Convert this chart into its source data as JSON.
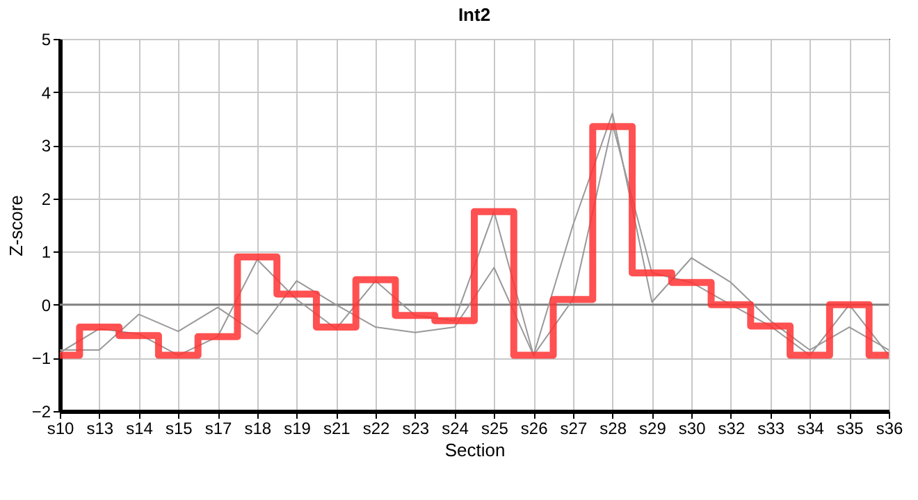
{
  "chart_data": {
    "type": "step",
    "title": "Int2",
    "xlabel": "Section",
    "ylabel": "Z-score",
    "categories": [
      "s10",
      "s13",
      "s14",
      "s15",
      "s17",
      "s18",
      "s19",
      "s21",
      "s22",
      "s23",
      "s24",
      "s25",
      "s26",
      "s27",
      "s28",
      "s29",
      "s30",
      "s32",
      "s33",
      "s34",
      "s35",
      "s36"
    ],
    "series": [
      {
        "type": "line",
        "color": "#999999",
        "values": [
          -0.9,
          -0.45,
          -0.55,
          -0.95,
          -0.6,
          0.85,
          0.1,
          -0.45,
          0.45,
          -0.2,
          -0.3,
          1.75,
          -0.95,
          0.1,
          3.4,
          0.6,
          0.42,
          0.0,
          -0.4,
          -0.95,
          0.0,
          -0.95
        ]
      },
      {
        "type": "line",
        "color": "#999999",
        "values": [
          -0.85,
          -0.85,
          -0.18,
          -0.5,
          -0.05,
          -0.55,
          0.45,
          0.0,
          -0.42,
          -0.52,
          -0.42,
          0.7,
          -0.95,
          1.5,
          3.6,
          0.05,
          0.88,
          0.42,
          -0.3,
          -0.85,
          -0.42,
          -0.85
        ]
      },
      {
        "type": "step",
        "color": "#ff3333",
        "values": [
          -0.95,
          -0.42,
          -0.58,
          -0.95,
          -0.6,
          0.9,
          0.2,
          -0.42,
          0.47,
          -0.2,
          -0.3,
          1.75,
          -0.95,
          0.1,
          3.35,
          0.6,
          0.42,
          0.0,
          -0.4,
          -0.95,
          0.0,
          -0.95
        ]
      }
    ],
    "ylim": [
      -2,
      5
    ],
    "yticks": [
      -2,
      -1,
      0,
      1,
      2,
      3,
      4,
      5
    ],
    "grid": true,
    "ref_lines": [
      {
        "axis": "y",
        "value": 0,
        "color": "#808080"
      }
    ]
  }
}
